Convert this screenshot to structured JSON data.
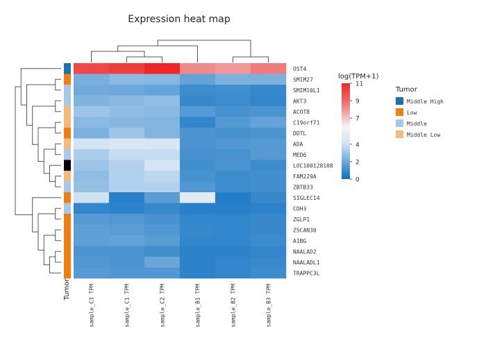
{
  "chart_data": {
    "type": "heatmap",
    "title": "Expression heat map",
    "rows": [
      "OST4",
      "SMIM27",
      "SMIM10L1",
      "AKT3",
      "ACOT8",
      "C19orf71",
      "DDTL",
      "ADA",
      "MED6",
      "LOC100128108",
      "FAM229A",
      "ZBTB33",
      "SIGLEC14",
      "CDH3",
      "ZGLP1",
      "ZSCAN30",
      "A1BG",
      "NAALAD2",
      "NAALADL1",
      "TRAPPC3L"
    ],
    "columns": [
      "sample_C3 TPM",
      "sample_C1 TPM",
      "sample_C2 TPM",
      "sample_B1 TPM",
      "sample_B2 TPM",
      "sample_B3 TPM"
    ],
    "values": [
      [
        10.0,
        10.3,
        11.0,
        8.2,
        7.9,
        8.5
      ],
      [
        2.2,
        2.6,
        2.5,
        1.8,
        2.3,
        2.3
      ],
      [
        2.1,
        2.0,
        1.8,
        1.0,
        1.1,
        0.9
      ],
      [
        2.4,
        2.6,
        2.7,
        0.9,
        1.0,
        0.8
      ],
      [
        3.0,
        2.7,
        2.6,
        1.5,
        1.2,
        1.3
      ],
      [
        2.6,
        2.5,
        2.4,
        0.8,
        1.5,
        1.8
      ],
      [
        2.3,
        3.0,
        2.4,
        1.3,
        1.2,
        1.3
      ],
      [
        4.2,
        4.6,
        4.5,
        1.3,
        1.4,
        1.5
      ],
      [
        3.3,
        3.8,
        3.8,
        1.2,
        1.2,
        1.5
      ],
      [
        3.0,
        3.4,
        4.3,
        1.1,
        1.3,
        1.0
      ],
      [
        2.7,
        3.4,
        3.6,
        1.2,
        1.0,
        1.1
      ],
      [
        2.8,
        3.4,
        3.4,
        1.4,
        1.0,
        1.1
      ],
      [
        4.0,
        0.6,
        1.6,
        5.0,
        0.5,
        0.9
      ],
      [
        0.8,
        0.7,
        0.9,
        0.6,
        0.6,
        0.7
      ],
      [
        1.5,
        1.4,
        1.2,
        0.8,
        0.8,
        0.9
      ],
      [
        1.7,
        1.6,
        1.4,
        0.9,
        0.8,
        0.9
      ],
      [
        1.7,
        1.8,
        1.6,
        0.8,
        0.8,
        1.0
      ],
      [
        1.3,
        1.3,
        1.1,
        0.7,
        0.7,
        0.8
      ],
      [
        1.4,
        1.3,
        1.9,
        0.7,
        0.8,
        0.9
      ],
      [
        1.5,
        1.4,
        1.4,
        0.7,
        0.8,
        1.0
      ]
    ],
    "row_groups": [
      "Middle High",
      "Low",
      "Middle",
      "Middle",
      "Middle Low",
      "Middle Low",
      "Low",
      "Middle Low",
      "Middle",
      "Middle Low",
      "Middle Low",
      "Middle",
      "Low",
      "Middle",
      "Low",
      "Low",
      "Low",
      "Low",
      "Low",
      "Low"
    ],
    "row_group_overrides": {
      "9": "#000000"
    },
    "row_annotation_label": "Tumor",
    "colorbar": {
      "title": "log(TPM+1)",
      "min": 0,
      "max": 11,
      "ticks": [
        0,
        2,
        4,
        7,
        9,
        11
      ],
      "stops": [
        {
          "value": 0,
          "color": "#0b6fc1"
        },
        {
          "value": 4,
          "color": "#cfe2f3"
        },
        {
          "value": 6,
          "color": "#f4f4f4"
        },
        {
          "value": 8.5,
          "color": "#f07b7b"
        },
        {
          "value": 11,
          "color": "#f02626"
        }
      ]
    },
    "legend": {
      "title": "Tumor",
      "entries": [
        {
          "label": "Middle High",
          "color": "#1f6fb4"
        },
        {
          "label": "Low",
          "color": "#f07f13"
        },
        {
          "label": "Middle",
          "color": "#a8c8ea"
        },
        {
          "label": "Middle Low",
          "color": "#f5b97a"
        }
      ]
    },
    "column_dendrogram_merges": [
      [
        1,
        2
      ],
      [
        0,
        "a"
      ],
      [
        4,
        5
      ],
      [
        3,
        "b"
      ],
      [
        "c",
        "d"
      ]
    ],
    "row_dendrogram_merges": [
      [
        1,
        2
      ],
      [
        3,
        4
      ],
      [
        5,
        6
      ],
      [
        7,
        8
      ],
      [
        10,
        11
      ],
      [
        9,
        "e"
      ],
      [
        "d",
        "f"
      ],
      [
        "c",
        "g"
      ],
      [
        "b",
        "h"
      ],
      [
        13,
        14
      ],
      [
        15,
        16
      ],
      [
        17,
        18
      ],
      [
        19,
        "l"
      ],
      [
        "k",
        "m"
      ],
      [
        "j",
        "n"
      ],
      [
        12,
        "o"
      ],
      [
        "a",
        "i"
      ],
      [
        0,
        "q"
      ],
      [
        "p",
        "r"
      ]
    ]
  }
}
